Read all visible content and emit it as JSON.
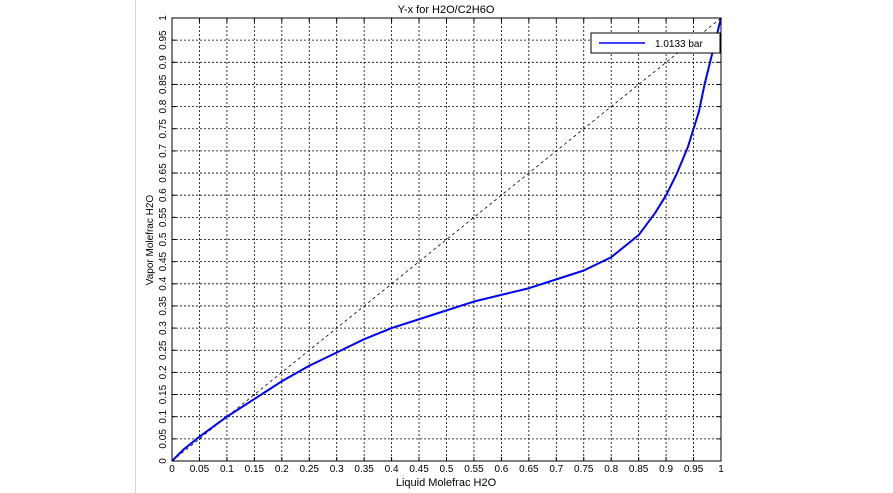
{
  "chart_data": {
    "type": "line",
    "title": "Y-x for H2O/C2H6O",
    "xlabel": "Liquid Molefrac H2O",
    "ylabel": "Vapor Molefrac H2O",
    "xlim": [
      0,
      1
    ],
    "ylim": [
      0,
      1
    ],
    "grid": true,
    "legend_position": "top-right",
    "x_ticks": [
      "0",
      "0.05",
      "0.1",
      "0.15",
      "0.2",
      "0.25",
      "0.3",
      "0.35",
      "0.4",
      "0.45",
      "0.5",
      "0.55",
      "0.6",
      "0.65",
      "0.7",
      "0.75",
      "0.8",
      "0.85",
      "0.9",
      "0.95",
      "1"
    ],
    "y_ticks": [
      "0",
      "0.05",
      "0.1",
      "0.15",
      "0.2",
      "0.25",
      "0.3",
      "0.35",
      "0.4",
      "0.45",
      "0.5",
      "0.55",
      "0.6",
      "0.65",
      "0.7",
      "0.75",
      "0.8",
      "0.85",
      "0.9",
      "0.95",
      "1"
    ],
    "series": [
      {
        "name": "1.0133 bar",
        "color": "#0000ff",
        "x": [
          0,
          0.02,
          0.05,
          0.1,
          0.15,
          0.2,
          0.25,
          0.3,
          0.35,
          0.4,
          0.45,
          0.5,
          0.55,
          0.6,
          0.65,
          0.7,
          0.75,
          0.8,
          0.85,
          0.88,
          0.9,
          0.92,
          0.94,
          0.96,
          0.97,
          0.98,
          0.99,
          1.0
        ],
        "y": [
          0,
          0.025,
          0.055,
          0.1,
          0.14,
          0.18,
          0.215,
          0.245,
          0.275,
          0.3,
          0.32,
          0.34,
          0.36,
          0.375,
          0.39,
          0.41,
          0.43,
          0.46,
          0.51,
          0.56,
          0.6,
          0.65,
          0.71,
          0.79,
          0.85,
          0.9,
          0.95,
          1.0
        ]
      },
      {
        "name": "",
        "color": "#000000",
        "line_style": "dashed",
        "x": [
          0,
          1
        ],
        "y": [
          0,
          1
        ]
      }
    ]
  }
}
